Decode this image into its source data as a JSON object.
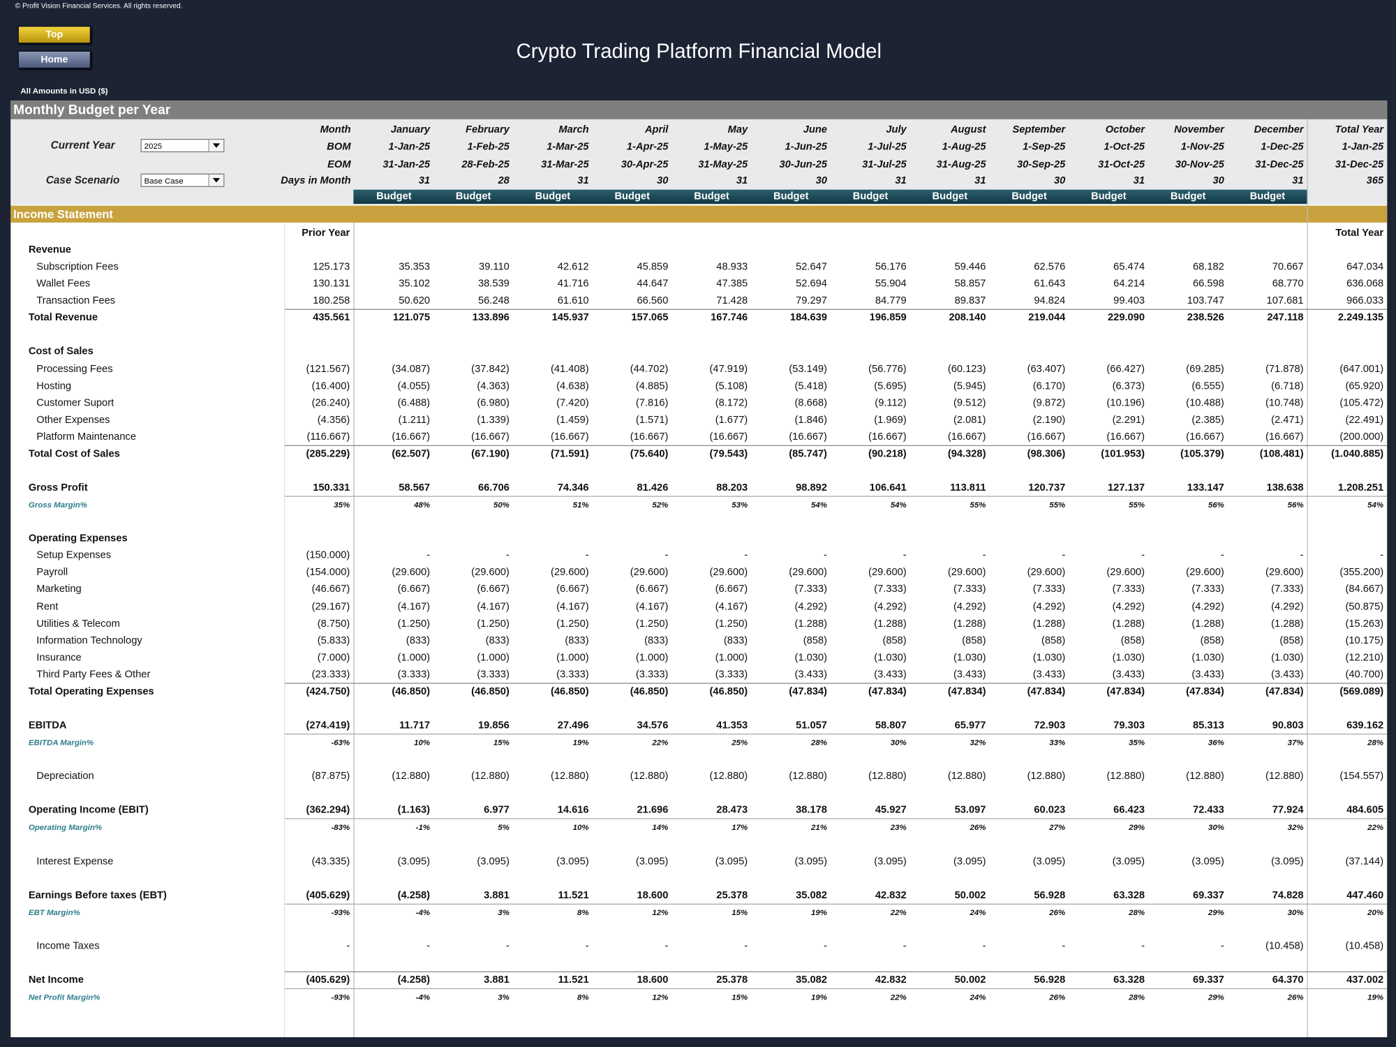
{
  "header": {
    "copyright": "© Profit Vision Financial Services. All rights reserved.",
    "buttons": [
      "Top",
      "Home"
    ],
    "title": "Crypto Trading Platform Financial Model",
    "amounts": "All Amounts in  USD ($)"
  },
  "budget_section": {
    "title": "Monthly Budget per Year",
    "controls": [
      {
        "label": "Current Year",
        "value": "2025"
      },
      {
        "label": "Case Scenario",
        "value": "Base Case"
      }
    ],
    "row_labels": [
      "Month",
      "BOM",
      "EOM",
      "Days in Month"
    ],
    "months": [
      "January",
      "February",
      "March",
      "April",
      "May",
      "June",
      "July",
      "August",
      "September",
      "October",
      "November",
      "December"
    ],
    "bom": [
      "1-Jan-25",
      "1-Feb-25",
      "1-Mar-25",
      "1-Apr-25",
      "1-May-25",
      "1-Jun-25",
      "1-Jul-25",
      "1-Aug-25",
      "1-Sep-25",
      "1-Oct-25",
      "1-Nov-25",
      "1-Dec-25"
    ],
    "eom": [
      "31-Jan-25",
      "28-Feb-25",
      "31-Mar-25",
      "30-Apr-25",
      "31-May-25",
      "30-Jun-25",
      "31-Jul-25",
      "31-Aug-25",
      "30-Sep-25",
      "31-Oct-25",
      "30-Nov-25",
      "31-Dec-25"
    ],
    "days": [
      31,
      28,
      31,
      30,
      31,
      30,
      31,
      31,
      30,
      31,
      30,
      31
    ],
    "budget": [
      "Budget",
      "Budget",
      "Budget",
      "Budget",
      "Budget",
      "Budget",
      "Budget",
      "Budget",
      "Budget",
      "Budget",
      "Budget",
      "Budget"
    ],
    "total": [
      "Total Year",
      "1-Jan-25",
      "31-Dec-25",
      "365"
    ]
  },
  "income_statement": {
    "title": "Income Statement",
    "prior_header": "Prior Year",
    "total_header": "Total Year",
    "blocks": [
      [
        {
          "label": "Revenue",
          "style": "header"
        },
        {
          "label": "Subscription Fees",
          "style": "item",
          "values": [
            "125.173",
            "35.353",
            "39.110",
            "42.612",
            "45.859",
            "48.933",
            "52.647",
            "56.176",
            "59.446",
            "62.576",
            "65.474",
            "68.182",
            "70.667",
            "647.034"
          ]
        },
        {
          "label": "Wallet Fees",
          "style": "item",
          "values": [
            "130.131",
            "35.102",
            "38.539",
            "41.716",
            "44.647",
            "47.385",
            "52.694",
            "55.904",
            "58.857",
            "61.643",
            "64.214",
            "66.598",
            "68.770",
            "636.068"
          ]
        },
        {
          "label": "Transaction Fees",
          "style": "item",
          "values": [
            "180.258",
            "50.620",
            "56.248",
            "61.610",
            "66.560",
            "71.428",
            "79.297",
            "84.779",
            "89.837",
            "94.824",
            "99.403",
            "103.747",
            "107.681",
            "966.033"
          ]
        },
        {
          "label": "Total Revenue",
          "style": "total",
          "values": [
            "435.561",
            "121.075",
            "133.896",
            "145.937",
            "157.065",
            "167.746",
            "184.639",
            "196.859",
            "208.140",
            "219.044",
            "229.090",
            "238.526",
            "247.118",
            "2.249.135"
          ]
        }
      ],
      [
        {
          "label": "Cost of Sales",
          "style": "header"
        },
        {
          "label": "Processing Fees",
          "style": "item",
          "values": [
            "(121.567)",
            "(34.087)",
            "(37.842)",
            "(41.408)",
            "(44.702)",
            "(47.919)",
            "(53.149)",
            "(56.776)",
            "(60.123)",
            "(63.407)",
            "(66.427)",
            "(69.285)",
            "(71.878)",
            "(647.001)"
          ]
        },
        {
          "label": "Hosting",
          "style": "item",
          "values": [
            "(16.400)",
            "(4.055)",
            "(4.363)",
            "(4.638)",
            "(4.885)",
            "(5.108)",
            "(5.418)",
            "(5.695)",
            "(5.945)",
            "(6.170)",
            "(6.373)",
            "(6.555)",
            "(6.718)",
            "(65.920)"
          ]
        },
        {
          "label": "Customer Suport",
          "style": "item",
          "values": [
            "(26.240)",
            "(6.488)",
            "(6.980)",
            "(7.420)",
            "(7.816)",
            "(8.172)",
            "(8.668)",
            "(9.112)",
            "(9.512)",
            "(9.872)",
            "(10.196)",
            "(10.488)",
            "(10.748)",
            "(105.472)"
          ]
        },
        {
          "label": "Other Expenses",
          "style": "item",
          "values": [
            "(4.356)",
            "(1.211)",
            "(1.339)",
            "(1.459)",
            "(1.571)",
            "(1.677)",
            "(1.846)",
            "(1.969)",
            "(2.081)",
            "(2.190)",
            "(2.291)",
            "(2.385)",
            "(2.471)",
            "(22.491)"
          ]
        },
        {
          "label": "Platform Maintenance",
          "style": "item",
          "values": [
            "(116.667)",
            "(16.667)",
            "(16.667)",
            "(16.667)",
            "(16.667)",
            "(16.667)",
            "(16.667)",
            "(16.667)",
            "(16.667)",
            "(16.667)",
            "(16.667)",
            "(16.667)",
            "(16.667)",
            "(200.000)"
          ]
        },
        {
          "label": "Total Cost of Sales",
          "style": "total",
          "values": [
            "(285.229)",
            "(62.507)",
            "(67.190)",
            "(71.591)",
            "(75.640)",
            "(79.543)",
            "(85.747)",
            "(90.218)",
            "(94.328)",
            "(98.306)",
            "(101.953)",
            "(105.379)",
            "(108.481)",
            "(1.040.885)"
          ]
        }
      ],
      [
        {
          "label": "Gross Profit",
          "style": "result",
          "values": [
            "150.331",
            "58.567",
            "66.706",
            "74.346",
            "81.426",
            "88.203",
            "98.892",
            "106.641",
            "113.811",
            "120.737",
            "127.137",
            "133.147",
            "138.638",
            "1.208.251"
          ]
        },
        {
          "label": "Gross Margin%",
          "style": "margin",
          "values": [
            "35%",
            "48%",
            "50%",
            "51%",
            "52%",
            "53%",
            "54%",
            "54%",
            "55%",
            "55%",
            "55%",
            "56%",
            "56%",
            "54%"
          ]
        }
      ],
      [
        {
          "label": "Operating Expenses",
          "style": "header"
        },
        {
          "label": "Setup Expenses",
          "style": "item",
          "values": [
            "(150.000)",
            "-",
            "-",
            "-",
            "-",
            "-",
            "-",
            "-",
            "-",
            "-",
            "-",
            "-",
            "-",
            "-"
          ]
        },
        {
          "label": "Payroll",
          "style": "item",
          "values": [
            "(154.000)",
            "(29.600)",
            "(29.600)",
            "(29.600)",
            "(29.600)",
            "(29.600)",
            "(29.600)",
            "(29.600)",
            "(29.600)",
            "(29.600)",
            "(29.600)",
            "(29.600)",
            "(29.600)",
            "(355.200)"
          ]
        },
        {
          "label": "Marketing",
          "style": "item",
          "values": [
            "(46.667)",
            "(6.667)",
            "(6.667)",
            "(6.667)",
            "(6.667)",
            "(6.667)",
            "(7.333)",
            "(7.333)",
            "(7.333)",
            "(7.333)",
            "(7.333)",
            "(7.333)",
            "(7.333)",
            "(84.667)"
          ]
        },
        {
          "label": "Rent",
          "style": "item",
          "values": [
            "(29.167)",
            "(4.167)",
            "(4.167)",
            "(4.167)",
            "(4.167)",
            "(4.167)",
            "(4.292)",
            "(4.292)",
            "(4.292)",
            "(4.292)",
            "(4.292)",
            "(4.292)",
            "(4.292)",
            "(50.875)"
          ]
        },
        {
          "label": "Utilities & Telecom",
          "style": "item",
          "values": [
            "(8.750)",
            "(1.250)",
            "(1.250)",
            "(1.250)",
            "(1.250)",
            "(1.250)",
            "(1.288)",
            "(1.288)",
            "(1.288)",
            "(1.288)",
            "(1.288)",
            "(1.288)",
            "(1.288)",
            "(15.263)"
          ]
        },
        {
          "label": "Information Technology",
          "style": "item",
          "values": [
            "(5.833)",
            "(833)",
            "(833)",
            "(833)",
            "(833)",
            "(833)",
            "(858)",
            "(858)",
            "(858)",
            "(858)",
            "(858)",
            "(858)",
            "(858)",
            "(10.175)"
          ]
        },
        {
          "label": "Insurance",
          "style": "item",
          "values": [
            "(7.000)",
            "(1.000)",
            "(1.000)",
            "(1.000)",
            "(1.000)",
            "(1.000)",
            "(1.030)",
            "(1.030)",
            "(1.030)",
            "(1.030)",
            "(1.030)",
            "(1.030)",
            "(1.030)",
            "(12.210)"
          ]
        },
        {
          "label": "Third Party Fees & Other",
          "style": "item",
          "values": [
            "(23.333)",
            "(3.333)",
            "(3.333)",
            "(3.333)",
            "(3.333)",
            "(3.333)",
            "(3.433)",
            "(3.433)",
            "(3.433)",
            "(3.433)",
            "(3.433)",
            "(3.433)",
            "(3.433)",
            "(40.700)"
          ]
        },
        {
          "label": "Total Operating Expenses",
          "style": "total",
          "values": [
            "(424.750)",
            "(46.850)",
            "(46.850)",
            "(46.850)",
            "(46.850)",
            "(46.850)",
            "(47.834)",
            "(47.834)",
            "(47.834)",
            "(47.834)",
            "(47.834)",
            "(47.834)",
            "(47.834)",
            "(569.089)"
          ]
        }
      ],
      [
        {
          "label": "EBITDA",
          "style": "result",
          "values": [
            "(274.419)",
            "11.717",
            "19.856",
            "27.496",
            "34.576",
            "41.353",
            "51.057",
            "58.807",
            "65.977",
            "72.903",
            "79.303",
            "85.313",
            "90.803",
            "639.162"
          ]
        },
        {
          "label": "EBITDA Margin%",
          "style": "margin",
          "values": [
            "-63%",
            "10%",
            "15%",
            "19%",
            "22%",
            "25%",
            "28%",
            "30%",
            "32%",
            "33%",
            "35%",
            "36%",
            "37%",
            "28%"
          ]
        }
      ],
      [
        {
          "label": "Depreciation",
          "style": "item",
          "values": [
            "(87.875)",
            "(12.880)",
            "(12.880)",
            "(12.880)",
            "(12.880)",
            "(12.880)",
            "(12.880)",
            "(12.880)",
            "(12.880)",
            "(12.880)",
            "(12.880)",
            "(12.880)",
            "(12.880)",
            "(154.557)"
          ]
        }
      ],
      [
        {
          "label": "Operating Income (EBIT)",
          "style": "result",
          "values": [
            "(362.294)",
            "(1.163)",
            "6.977",
            "14.616",
            "21.696",
            "28.473",
            "38.178",
            "45.927",
            "53.097",
            "60.023",
            "66.423",
            "72.433",
            "77.924",
            "484.605"
          ]
        },
        {
          "label": "Operating Margin%",
          "style": "margin",
          "values": [
            "-83%",
            "-1%",
            "5%",
            "10%",
            "14%",
            "17%",
            "21%",
            "23%",
            "26%",
            "27%",
            "29%",
            "30%",
            "32%",
            "22%"
          ]
        }
      ],
      [
        {
          "label": "Interest Expense",
          "style": "item",
          "values": [
            "(43.335)",
            "(3.095)",
            "(3.095)",
            "(3.095)",
            "(3.095)",
            "(3.095)",
            "(3.095)",
            "(3.095)",
            "(3.095)",
            "(3.095)",
            "(3.095)",
            "(3.095)",
            "(3.095)",
            "(37.144)"
          ]
        }
      ],
      [
        {
          "label": "Earnings Before taxes (EBT)",
          "style": "result",
          "values": [
            "(405.629)",
            "(4.258)",
            "3.881",
            "11.521",
            "18.600",
            "25.378",
            "35.082",
            "42.832",
            "50.002",
            "56.928",
            "63.328",
            "69.337",
            "74.828",
            "447.460"
          ]
        },
        {
          "label": "EBT Margin%",
          "style": "margin",
          "values": [
            "-93%",
            "-4%",
            "3%",
            "8%",
            "12%",
            "15%",
            "19%",
            "22%",
            "24%",
            "26%",
            "28%",
            "29%",
            "30%",
            "20%"
          ]
        }
      ],
      [
        {
          "label": "Income Taxes",
          "style": "item",
          "values": [
            "-",
            "-",
            "-",
            "-",
            "-",
            "-",
            "-",
            "-",
            "-",
            "-",
            "-",
            "-",
            "(10.458)",
            "(10.458)"
          ]
        }
      ],
      [
        {
          "label": "Net Income",
          "style": "net",
          "values": [
            "(405.629)",
            "(4.258)",
            "3.881",
            "11.521",
            "18.600",
            "25.378",
            "35.082",
            "42.832",
            "50.002",
            "56.928",
            "63.328",
            "69.337",
            "64.370",
            "437.002"
          ]
        },
        {
          "label": "Net Profit Margin%",
          "style": "margin",
          "values": [
            "-93%",
            "-4%",
            "3%",
            "8%",
            "12%",
            "15%",
            "19%",
            "22%",
            "24%",
            "26%",
            "28%",
            "29%",
            "26%",
            "19%"
          ]
        }
      ]
    ]
  }
}
